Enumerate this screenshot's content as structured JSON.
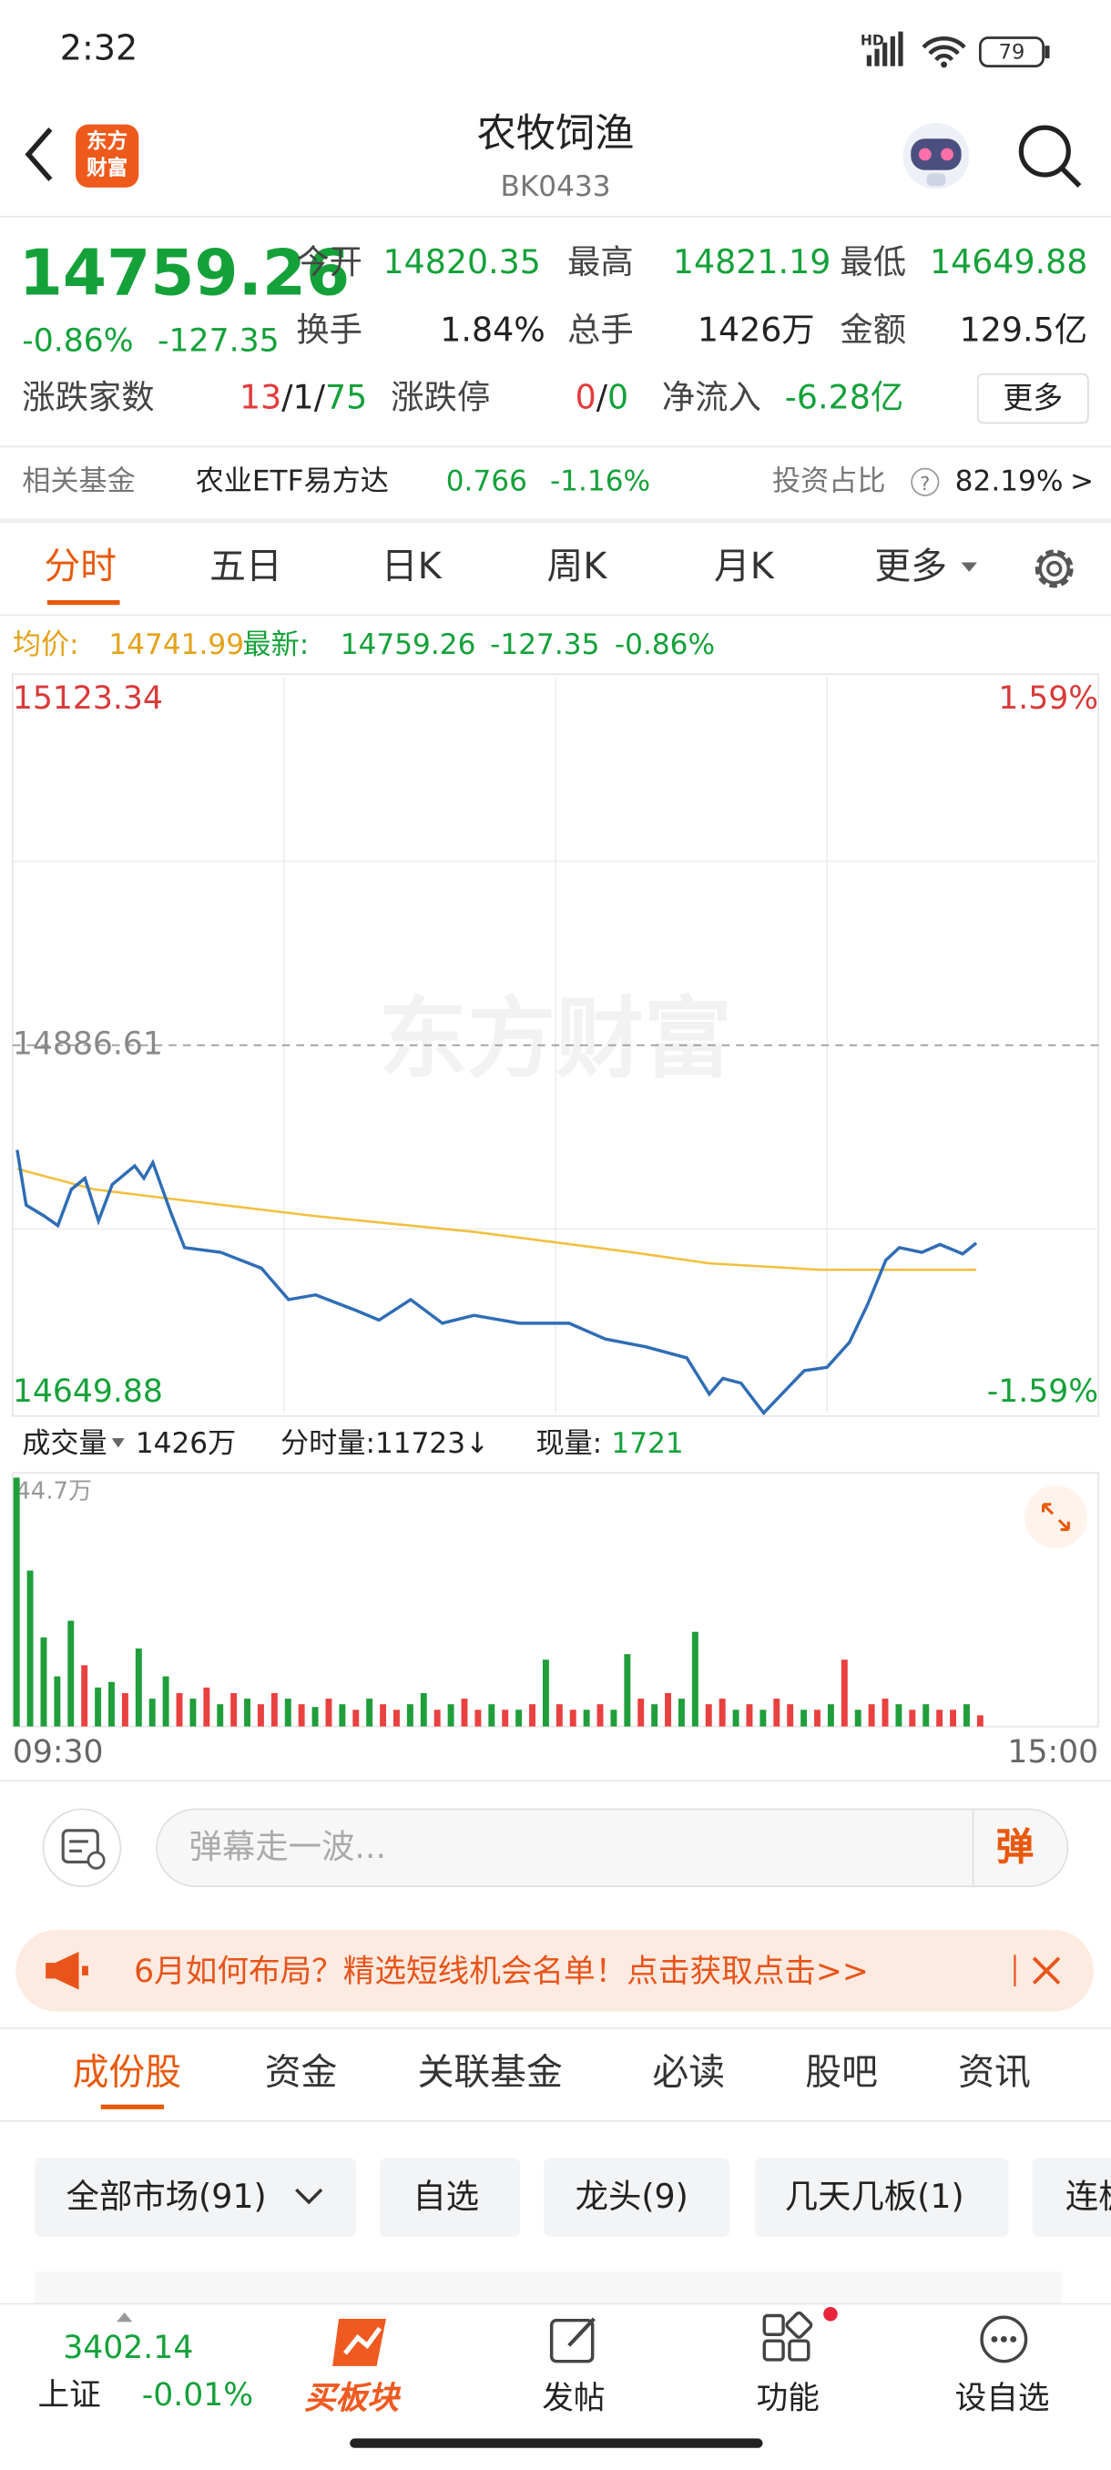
{
  "status_bar": {
    "time": "2:32",
    "hd": "HD",
    "battery": "79"
  },
  "header": {
    "logo": [
      "东方",
      "财富"
    ],
    "title": "农牧饲渔",
    "code": "BK0433"
  },
  "quote": {
    "price": "14759.26",
    "change_pct": "-0.86%",
    "change": "-127.35",
    "stats": [
      {
        "label": "今开",
        "value": "14820.35"
      },
      {
        "label": "最高",
        "value": "14821.19"
      },
      {
        "label": "最低",
        "value": "14649.88"
      },
      {
        "label": "换手",
        "value": "1.84%"
      },
      {
        "label": "总手",
        "value": "1426万"
      },
      {
        "label": "金额",
        "value": "129.5亿"
      }
    ],
    "breadth": {
      "label": "涨跌家数",
      "parts": [
        "13",
        "/",
        "1",
        "/",
        "75"
      ]
    },
    "limit": {
      "label": "涨跌停",
      "parts": [
        "0",
        "/",
        "0"
      ]
    },
    "net_inflow": {
      "label": "净流入",
      "value": "-6.28亿"
    },
    "more": "更多"
  },
  "fund": {
    "label": "相关基金",
    "name": "农业ETF易方达",
    "price": "0.766",
    "change": "-1.16%",
    "ratio_label": "投资占比",
    "help": "?",
    "ratio": "82.19%",
    "arrow": ">"
  },
  "tabs": [
    "分时",
    "五日",
    "日K",
    "周K",
    "月K",
    "更多"
  ],
  "legend": {
    "avg_label": "均价:",
    "avg": "14741.99",
    "last_label": "最新:",
    "last": "14759.26",
    "change": "-127.35",
    "change_pct": "-0.86%"
  },
  "chart_data": [
    {
      "type": "line",
      "watermark": "东方财富",
      "grid": true,
      "xlim": [
        0,
        240
      ],
      "ylim": [
        14649.88,
        15123.34
      ],
      "yticks": [
        15123.34,
        14886.61,
        14649.88
      ],
      "y2lim": [
        -1.59,
        1.59
      ],
      "y2ticks": [
        {
          "value": 1.59,
          "label": "1.59%"
        },
        {
          "value": -1.59,
          "label": "-1.59%"
        }
      ],
      "series": [
        {
          "color": "#2f6db5",
          "x": [
            1,
            3,
            7,
            10,
            13,
            16,
            19,
            22,
            27,
            29,
            31,
            35,
            38,
            46,
            55,
            61,
            67,
            76,
            81,
            88,
            95,
            102,
            112,
            123,
            131,
            140,
            149,
            154,
            157,
            161,
            166,
            171,
            175,
            180,
            185,
            189,
            193,
            196,
            201,
            205,
            210,
            213
          ],
          "values": [
            14819.2,
            14783.7,
            14776.6,
            14770.5,
            14793.8,
            14800.9,
            14773.6,
            14796.9,
            14809.0,
            14800.9,
            14811.1,
            14778.6,
            14756.3,
            14753.3,
            14743.1,
            14722.9,
            14725.9,
            14715.8,
            14709.7,
            14722.9,
            14707.7,
            14712.7,
            14707.7,
            14707.7,
            14697.5,
            14692.5,
            14685.4,
            14662.0,
            14672.2,
            14669.1,
            14649.88,
            14665.1,
            14677.2,
            14679.3,
            14695.5,
            14719.8,
            14748.2,
            14756.3,
            14753.3,
            14758.4,
            14752.3,
            14759.26
          ]
        },
        {
          "color": "#f0c040",
          "x": [
            1,
            18,
            32,
            67,
            102,
            137,
            154,
            178,
            213
          ],
          "values": [
            14807.0,
            14793.8,
            14788.8,
            14776.6,
            14766.5,
            14753.3,
            14746.2,
            14742.1,
            14741.99
          ]
        }
      ]
    },
    {
      "type": "bar",
      "xlim": [
        0,
        240
      ],
      "xticks": [
        {
          "value": 0,
          "label": "09:30"
        },
        {
          "value": 240,
          "label": "15:00"
        }
      ],
      "ylim": [
        0,
        44.7
      ],
      "yticks": [
        {
          "value": 44.7,
          "label": "44.7万"
        }
      ],
      "colors": {
        "up": "#e8413f",
        "down": "#1f9e3a"
      },
      "x": [
        0,
        3,
        6,
        9,
        12,
        15,
        18,
        21,
        24,
        27,
        30,
        33,
        36,
        39,
        42,
        45,
        48,
        51,
        54,
        57,
        60,
        63,
        66,
        69,
        72,
        75,
        78,
        81,
        84,
        87,
        90,
        93,
        96,
        99,
        102,
        105,
        108,
        111,
        114,
        117,
        120,
        123,
        126,
        129,
        132,
        135,
        138,
        141,
        144,
        147,
        150,
        153,
        156,
        159,
        162,
        165,
        168,
        171,
        174,
        177,
        180,
        183,
        186,
        189,
        192,
        195,
        198,
        201,
        204,
        207,
        210,
        213
      ],
      "values": [
        44.7,
        28,
        16,
        9,
        19,
        11,
        7,
        8,
        6,
        14,
        5,
        9,
        6,
        5,
        7,
        4,
        6,
        5,
        4,
        6,
        5,
        4,
        3.5,
        5,
        4,
        3,
        5,
        4,
        3,
        4,
        6,
        3,
        4,
        5,
        3,
        4,
        3,
        3,
        4,
        12,
        4,
        3,
        3,
        4,
        3,
        13,
        5,
        4,
        6,
        5,
        17,
        4,
        5,
        3,
        4,
        3,
        5,
        4,
        3,
        3,
        4,
        12,
        3,
        4,
        5,
        4,
        3,
        4,
        3,
        3,
        4,
        2
      ],
      "direction": [
        "down",
        "down",
        "down",
        "down",
        "down",
        "up",
        "down",
        "down",
        "up",
        "down",
        "down",
        "down",
        "up",
        "down",
        "up",
        "down",
        "up",
        "down",
        "up",
        "up",
        "down",
        "up",
        "down",
        "up",
        "down",
        "up",
        "down",
        "up",
        "up",
        "down",
        "down",
        "up",
        "down",
        "up",
        "up",
        "down",
        "up",
        "down",
        "up",
        "down",
        "up",
        "up",
        "down",
        "up",
        "down",
        "down",
        "up",
        "down",
        "up",
        "down",
        "down",
        "up",
        "up",
        "down",
        "up",
        "down",
        "up",
        "up",
        "down",
        "up",
        "down",
        "up",
        "down",
        "up",
        "up",
        "down",
        "up",
        "down",
        "up",
        "up",
        "down",
        "up"
      ]
    }
  ],
  "volume_legend": {
    "label": "成交量",
    "total": "1426万",
    "minute": "分时量:11723↓",
    "current_label": "现量:",
    "current": "1721"
  },
  "danmaku": {
    "placeholder": "弹幕走一波...",
    "button": "弹"
  },
  "banner": {
    "text": "6月如何布局？精选短线机会名单！点击获取点击>>"
  },
  "sub_tabs": [
    "成份股",
    "资金",
    "关联基金",
    "必读",
    "股吧",
    "资讯"
  ],
  "filters": [
    "全部市场(91)",
    "自选",
    "龙头(9)",
    "几天几板(1)",
    "连板"
  ],
  "bottom_nav": {
    "index_value": "3402.14",
    "index_name": "上证",
    "index_change": "-0.01%",
    "items": [
      "买板块",
      "发帖",
      "功能",
      "设自选"
    ]
  }
}
